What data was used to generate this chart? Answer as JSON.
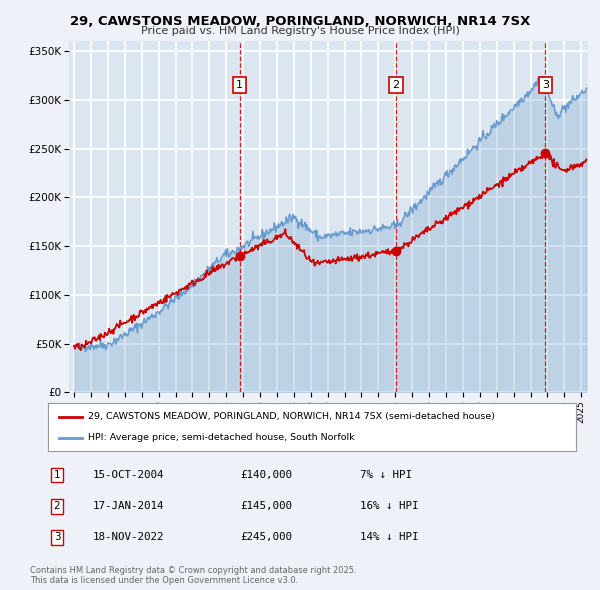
{
  "title": "29, CAWSTONS MEADOW, PORINGLAND, NORWICH, NR14 7SX",
  "subtitle": "Price paid vs. HM Land Registry's House Price Index (HPI)",
  "red_label": "29, CAWSTONS MEADOW, PORINGLAND, NORWICH, NR14 7SX (semi-detached house)",
  "blue_label": "HPI: Average price, semi-detached house, South Norfolk",
  "sale_events": [
    {
      "num": 1,
      "date": "15-OCT-2004",
      "price": "£140,000",
      "hpi": "7% ↓ HPI",
      "year": 2004.79
    },
    {
      "num": 2,
      "date": "17-JAN-2014",
      "price": "£145,000",
      "hpi": "16% ↓ HPI",
      "year": 2014.04
    },
    {
      "num": 3,
      "date": "18-NOV-2022",
      "price": "£245,000",
      "hpi": "14% ↓ HPI",
      "year": 2022.88
    }
  ],
  "sale_prices": [
    140000,
    145000,
    245000
  ],
  "ylim": [
    0,
    360000
  ],
  "yticks": [
    0,
    50000,
    100000,
    150000,
    200000,
    250000,
    300000,
    350000
  ],
  "xlim_start": 1994.7,
  "xlim_end": 2025.4,
  "background_color": "#eef2f8",
  "plot_bg_color": "#dce6f0",
  "grid_color": "#ffffff",
  "red_color": "#cc0000",
  "blue_color": "#6699cc",
  "footer": "Contains HM Land Registry data © Crown copyright and database right 2025.\nThis data is licensed under the Open Government Licence v3.0."
}
